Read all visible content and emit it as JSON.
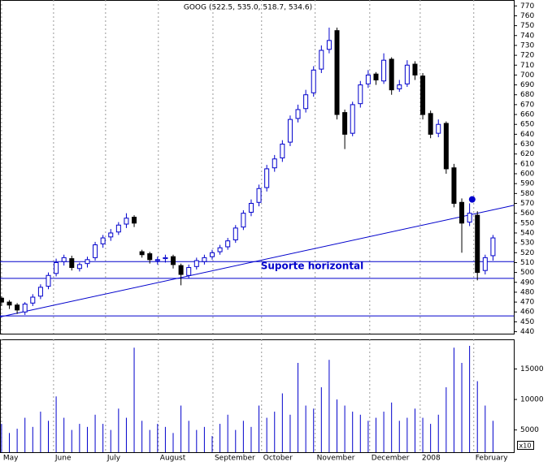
{
  "chart_data": {
    "type": "candlestick",
    "title": "GOOG (522.5, 535.0, 518.7, 534.6)",
    "annotation": "Suporte horizontal",
    "x": [
      0,
      3,
      6,
      9,
      12,
      15,
      18,
      21,
      24,
      27,
      30,
      33,
      36,
      39,
      42,
      45,
      48,
      51,
      54,
      57,
      60,
      63,
      66,
      69,
      72,
      75,
      78,
      81,
      84,
      87,
      90,
      93,
      96,
      99,
      102,
      105,
      108,
      111,
      114,
      117,
      120,
      123,
      126,
      129,
      132,
      135,
      138,
      141,
      144,
      147,
      150,
      153,
      156,
      159,
      162,
      165,
      168,
      171,
      174,
      177,
      180,
      183,
      186,
      189
    ],
    "open": [
      474,
      470,
      467,
      460,
      469,
      476,
      486,
      499,
      511,
      514,
      504,
      509,
      515,
      529,
      536,
      541,
      549,
      556,
      521,
      519,
      512,
      514,
      516,
      507,
      497,
      506,
      511,
      516,
      521,
      526,
      533,
      546,
      561,
      571,
      586,
      606,
      616,
      632,
      656,
      666,
      682,
      706,
      726,
      745,
      662,
      641,
      671,
      691,
      701,
      694,
      716,
      686,
      691,
      711,
      699,
      661,
      641,
      651,
      606,
      571,
      551,
      558,
      502,
      517
    ],
    "high": [
      476,
      472,
      469,
      470,
      478,
      488,
      500,
      514,
      518,
      517,
      510,
      516,
      531,
      538,
      544,
      551,
      560,
      558,
      523,
      521,
      516,
      518,
      518,
      509,
      508,
      515,
      518,
      523,
      528,
      535,
      548,
      563,
      574,
      589,
      609,
      619,
      634,
      659,
      670,
      685,
      709,
      730,
      748,
      748,
      665,
      673,
      694,
      705,
      703,
      722,
      718,
      695,
      715,
      714,
      702,
      664,
      655,
      653,
      610,
      575,
      570,
      562,
      518,
      538
    ],
    "low": [
      466,
      463,
      458,
      457,
      466,
      473,
      483,
      496,
      507,
      502,
      501,
      505,
      512,
      525,
      532,
      538,
      545,
      546,
      515,
      509,
      508,
      510,
      504,
      487,
      494,
      503,
      508,
      513,
      518,
      523,
      530,
      543,
      557,
      567,
      582,
      602,
      612,
      628,
      652,
      662,
      678,
      702,
      722,
      655,
      625,
      638,
      667,
      687,
      690,
      691,
      680,
      683,
      688,
      695,
      655,
      636,
      637,
      600,
      566,
      520,
      547,
      492,
      498,
      512
    ],
    "close": [
      470,
      467,
      462,
      468,
      475,
      485,
      497,
      510,
      515,
      505,
      508,
      513,
      528,
      535,
      540,
      548,
      555,
      550,
      518,
      513,
      513,
      515,
      508,
      498,
      505,
      512,
      515,
      520,
      525,
      532,
      545,
      560,
      570,
      585,
      605,
      615,
      630,
      655,
      665,
      680,
      705,
      725,
      735,
      660,
      640,
      670,
      690,
      700,
      695,
      715,
      685,
      690,
      710,
      700,
      660,
      640,
      650,
      605,
      570,
      550,
      560,
      500,
      515,
      535
    ],
    "volume": [
      6000,
      4500,
      5200,
      7000,
      5500,
      8000,
      6500,
      10500,
      7000,
      5000,
      6000,
      5500,
      7500,
      6000,
      5000,
      8500,
      7000,
      18500,
      6500,
      5000,
      6000,
      5500,
      4500,
      9000,
      6500,
      5000,
      5500,
      4000,
      6000,
      7500,
      5000,
      6500,
      5500,
      9000,
      7000,
      8000,
      11000,
      7500,
      16000,
      9000,
      8500,
      12000,
      16500,
      10000,
      9000,
      8000,
      7500,
      6500,
      7000,
      8000,
      9500,
      6500,
      7000,
      8500,
      7000,
      6000,
      7500,
      12000,
      18500,
      16000,
      18800,
      13000,
      9000,
      6500
    ],
    "up_color": "#0000cc",
    "down_color": "#000000",
    "line_color": "#0000cc",
    "xlim": [
      -0.6,
      197
    ],
    "xticks": [
      {
        "value": 0,
        "label": "May"
      },
      {
        "value": 20,
        "label": "June"
      },
      {
        "value": 40,
        "label": "July"
      },
      {
        "value": 60.3,
        "label": "August"
      },
      {
        "value": 81.3,
        "label": "September"
      },
      {
        "value": 100,
        "label": "October"
      },
      {
        "value": 120.6,
        "label": "November"
      },
      {
        "value": 141.6,
        "label": "December"
      },
      {
        "value": 161,
        "label": "2008"
      },
      {
        "value": 181.6,
        "label": "February"
      }
    ],
    "ylim": [
      438,
      776
    ],
    "yticks": [
      440,
      450,
      460,
      470,
      480,
      490,
      500,
      510,
      520,
      530,
      540,
      550,
      560,
      570,
      580,
      590,
      600,
      610,
      620,
      630,
      640,
      650,
      660,
      670,
      680,
      690,
      700,
      710,
      720,
      730,
      740,
      750,
      760,
      770
    ],
    "volume_ylim": [
      1350,
      19860
    ],
    "volume_ticks": [
      5000,
      10000,
      15000
    ],
    "volume_unit": "x10",
    "levels": [
      511,
      494,
      456
    ],
    "trendline": {
      "x": [
        -0.6,
        197
      ],
      "y": [
        455,
        568
      ]
    },
    "marker": {
      "x": 181,
      "y": 574
    }
  }
}
